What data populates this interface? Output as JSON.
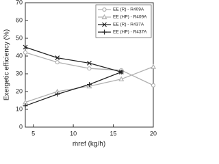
{
  "chart_data": {
    "type": "line",
    "x_label": "ṁref (kg/h)",
    "y_label": "Exergetic efficiency (%)",
    "xlim": [
      4,
      20
    ],
    "xticks": [
      5,
      10,
      15,
      20
    ],
    "ylim": [
      0,
      70
    ],
    "yticks": [
      0,
      10,
      20,
      30,
      40,
      50,
      60,
      70
    ],
    "legend": "upper right",
    "series": [
      {
        "name": "EE (R) - R409A",
        "color": "#b0b0b0",
        "marker": "circle",
        "x": [
          4,
          8,
          12,
          16,
          20
        ],
        "values": [
          42,
          36.5,
          33,
          32,
          23.5
        ]
      },
      {
        "name": "EE (HP) - R409A",
        "color": "#b0b0b0",
        "marker": "triangle",
        "x": [
          4,
          8,
          12,
          16,
          20
        ],
        "values": [
          14,
          20,
          23,
          27,
          34
        ]
      },
      {
        "name": "EE (R) - R437A",
        "color": "#222222",
        "marker": "x",
        "x": [
          4,
          8,
          12,
          16
        ],
        "values": [
          45,
          39,
          36,
          31
        ]
      },
      {
        "name": "EE (HP) - R437A",
        "color": "#222222",
        "marker": "plus",
        "x": [
          4,
          8,
          12,
          16
        ],
        "values": [
          12,
          18.5,
          24,
          31
        ]
      }
    ]
  }
}
